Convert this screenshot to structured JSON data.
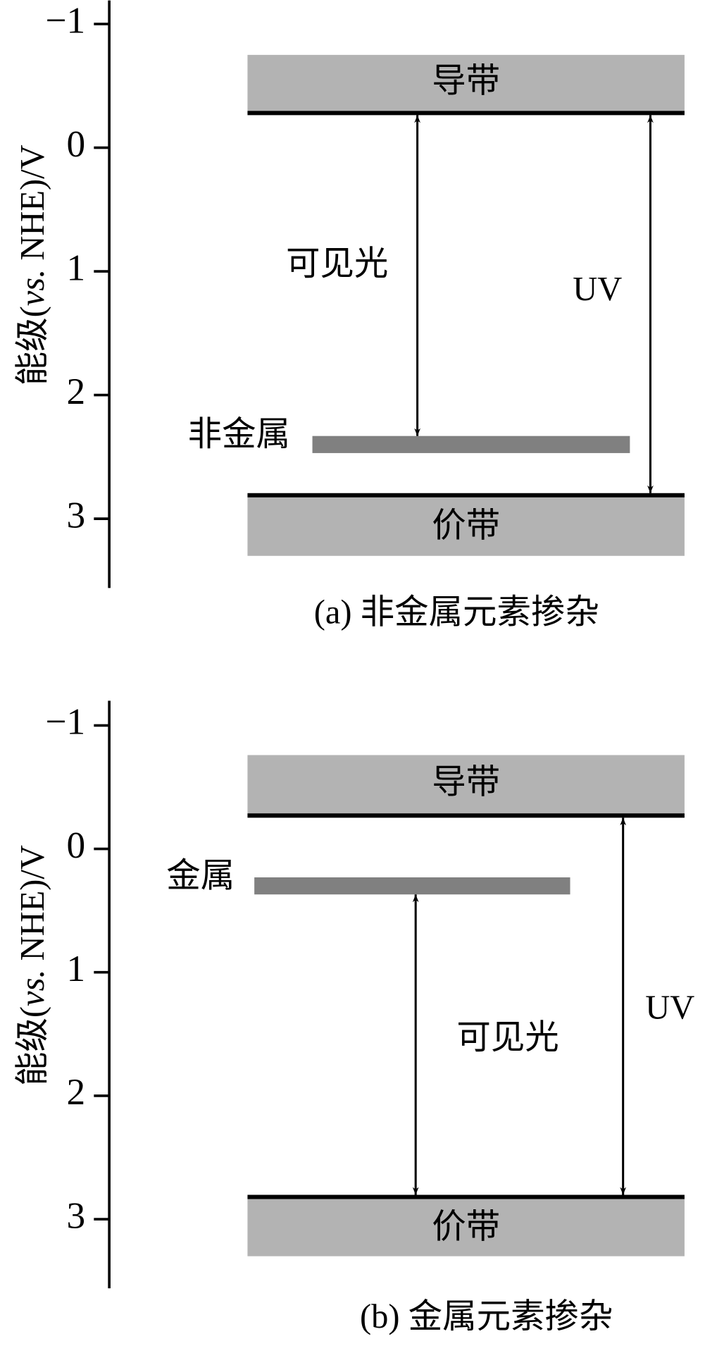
{
  "panels": [
    {
      "ylabel": {
        "prefix": "能级(",
        "italic": "vs.",
        "suffix": " NHE)/V"
      },
      "ylim": [
        -1.19,
        3.56
      ],
      "yticks": [
        {
          "value": -1,
          "label": "−1"
        },
        0,
        1,
        2,
        3
      ],
      "conduction_band": {
        "label": "导带",
        "top": -0.75,
        "edge": -0.28
      },
      "valence_band": {
        "label": "价带",
        "edge": 2.81,
        "bottom": 3.3
      },
      "dopant_level": {
        "label": "非金属",
        "value": 2.4
      },
      "visible_label": "可见光",
      "uv_label": "UV",
      "caption": "(a) 非金属元素掺杂"
    },
    {
      "ylabel": {
        "prefix": "能级(",
        "italic": "vs.",
        "suffix": " NHE)/V"
      },
      "ylim": [
        -1.2,
        3.56
      ],
      "yticks": [
        {
          "value": -1,
          "label": "−1"
        },
        0,
        1,
        2,
        3
      ],
      "conduction_band": {
        "label": "导带",
        "top": -0.76,
        "edge": -0.27
      },
      "valence_band": {
        "label": "价带",
        "edge": 2.82,
        "bottom": 3.3
      },
      "dopant_level": {
        "label": "金属",
        "value": 0.3
      },
      "visible_label": "可见光",
      "uv_label": "UV",
      "caption": "(b) 金属元素掺杂"
    }
  ]
}
